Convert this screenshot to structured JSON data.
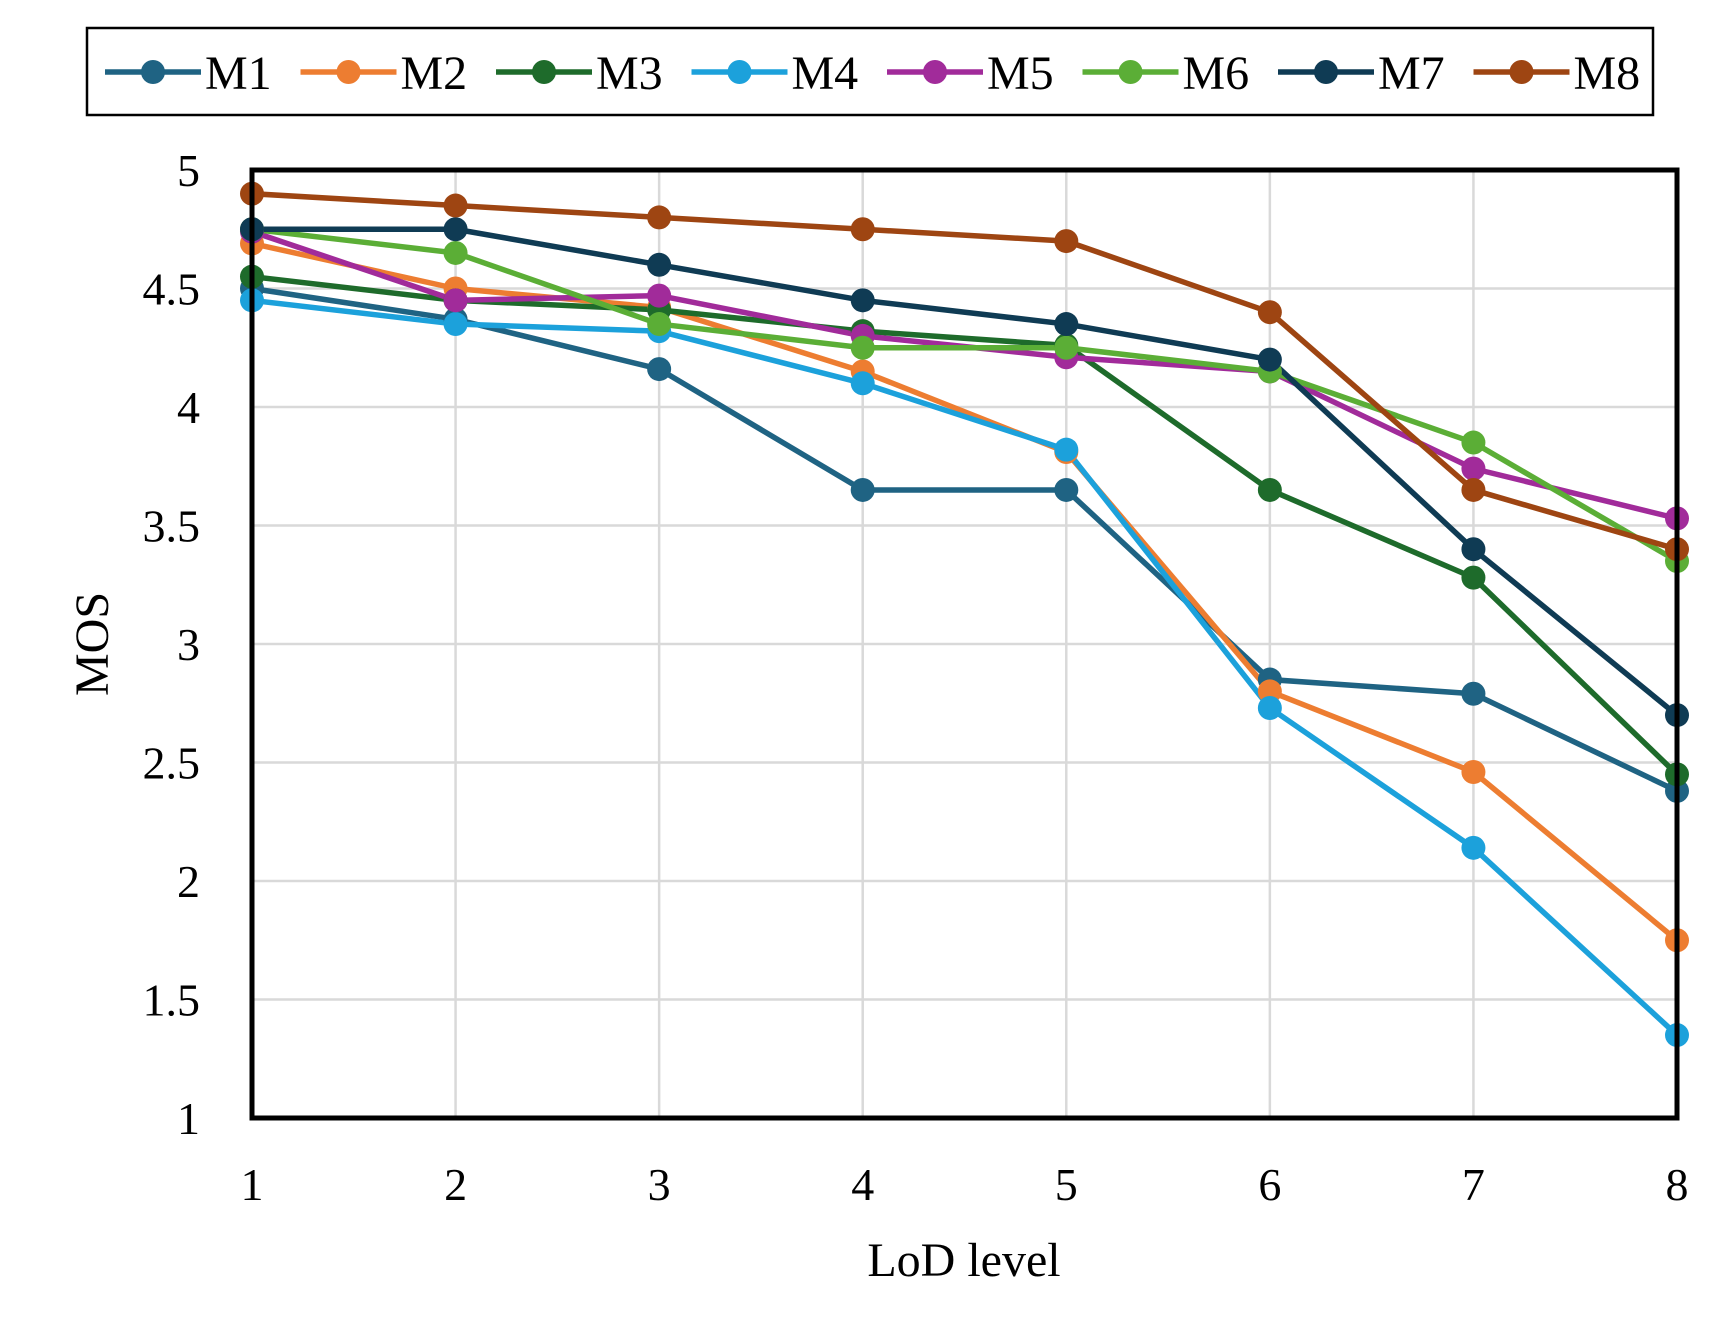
{
  "chart_data": {
    "type": "line",
    "title": "",
    "xlabel": "LoD level",
    "ylabel": "MOS",
    "x": [
      1,
      2,
      3,
      4,
      5,
      6,
      7,
      8
    ],
    "xlim": [
      1,
      8
    ],
    "ylim": [
      1,
      5
    ],
    "yticks": [
      1,
      1.5,
      2,
      2.5,
      3,
      3.5,
      4,
      4.5,
      5
    ],
    "ytick_labels": [
      "1",
      "1.5",
      "2",
      "2.5",
      "3",
      "3.5",
      "4",
      "4.5",
      "5"
    ],
    "xtick_labels": [
      "1",
      "2",
      "3",
      "4",
      "5",
      "6",
      "7",
      "8"
    ],
    "grid": true,
    "legend_position": "top",
    "series": [
      {
        "name": "M1",
        "color": "#1F6383",
        "values": [
          4.5,
          4.37,
          4.16,
          3.65,
          3.65,
          2.85,
          2.79,
          2.38
        ]
      },
      {
        "name": "M2",
        "color": "#ED7D31",
        "values": [
          4.69,
          4.5,
          4.42,
          4.15,
          3.81,
          2.8,
          2.46,
          1.75
        ]
      },
      {
        "name": "M3",
        "color": "#1E6B2B",
        "values": [
          4.55,
          4.45,
          4.41,
          4.32,
          4.26,
          3.65,
          3.28,
          2.45
        ]
      },
      {
        "name": "M4",
        "color": "#1CA1DB",
        "values": [
          4.45,
          4.35,
          4.32,
          4.1,
          3.82,
          2.73,
          2.14,
          1.35
        ]
      },
      {
        "name": "M5",
        "color": "#A12B9A",
        "values": [
          4.74,
          4.45,
          4.47,
          4.3,
          4.21,
          4.15,
          3.74,
          3.53
        ]
      },
      {
        "name": "M6",
        "color": "#5BAE36",
        "values": [
          4.75,
          4.65,
          4.35,
          4.25,
          4.25,
          4.15,
          3.85,
          3.35
        ]
      },
      {
        "name": "M7",
        "color": "#0F3B54",
        "values": [
          4.75,
          4.75,
          4.6,
          4.45,
          4.35,
          4.2,
          3.4,
          2.7
        ]
      },
      {
        "name": "M8",
        "color": "#9E4512",
        "values": [
          4.9,
          4.85,
          4.8,
          4.75,
          4.7,
          4.4,
          3.65,
          3.4
        ]
      }
    ]
  }
}
